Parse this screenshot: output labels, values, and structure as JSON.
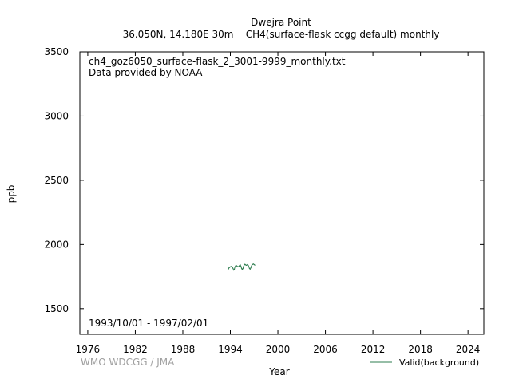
{
  "chart_data": {
    "type": "line",
    "title": "Dwejra Point",
    "subtitle": "36.050N, 14.180E 30m    CH4(surface-flask ccgg default) monthly",
    "annotation_file": "ch4_goz6050_surface-flask_2_3001-9999_monthly.txt",
    "annotation_provider": "Data provided by NOAA",
    "date_range": "1993/10/01 - 1997/02/01",
    "xlabel": "Year",
    "ylabel": "ppb",
    "watermark": "WMO WDCGG / JMA",
    "legend": "Valid(background)",
    "legend_position": "bottom-right",
    "xlim": [
      1975,
      2026
    ],
    "ylim": [
      1300,
      3500
    ],
    "x_ticks": [
      1976,
      1982,
      1988,
      1994,
      2000,
      2006,
      2012,
      2018,
      2024
    ],
    "y_ticks": [
      1500,
      2000,
      2500,
      3000,
      3500
    ],
    "series_color": "#2e7d4f",
    "series": [
      {
        "name": "Valid(background)",
        "x": [
          "1993-10",
          "1993-11",
          "1993-12",
          "1994-01",
          "1994-02",
          "1994-03",
          "1994-04",
          "1994-05",
          "1994-06",
          "1994-07",
          "1994-08",
          "1994-09",
          "1994-10",
          "1994-11",
          "1994-12",
          "1995-01",
          "1995-02",
          "1995-03",
          "1995-04",
          "1995-05",
          "1995-06",
          "1995-07",
          "1995-08",
          "1995-09",
          "1995-10",
          "1995-11",
          "1995-12",
          "1996-01",
          "1996-02",
          "1996-03",
          "1996-04",
          "1996-05",
          "1996-06",
          "1996-07",
          "1996-08",
          "1996-09",
          "1996-10",
          "1996-11",
          "1996-12",
          "1997-01",
          "1997-02"
        ],
        "values": [
          1808,
          1818,
          1822,
          1826,
          1829,
          1828,
          1824,
          1814,
          1800,
          1806,
          1826,
          1834,
          1836,
          1832,
          1828,
          1826,
          1830,
          1838,
          1842,
          1830,
          1814,
          1804,
          1812,
          1830,
          1840,
          1846,
          1842,
          1838,
          1840,
          1844,
          1838,
          1826,
          1812,
          1808,
          1818,
          1834,
          1842,
          1846,
          1848,
          1844,
          1840
        ]
      }
    ]
  }
}
